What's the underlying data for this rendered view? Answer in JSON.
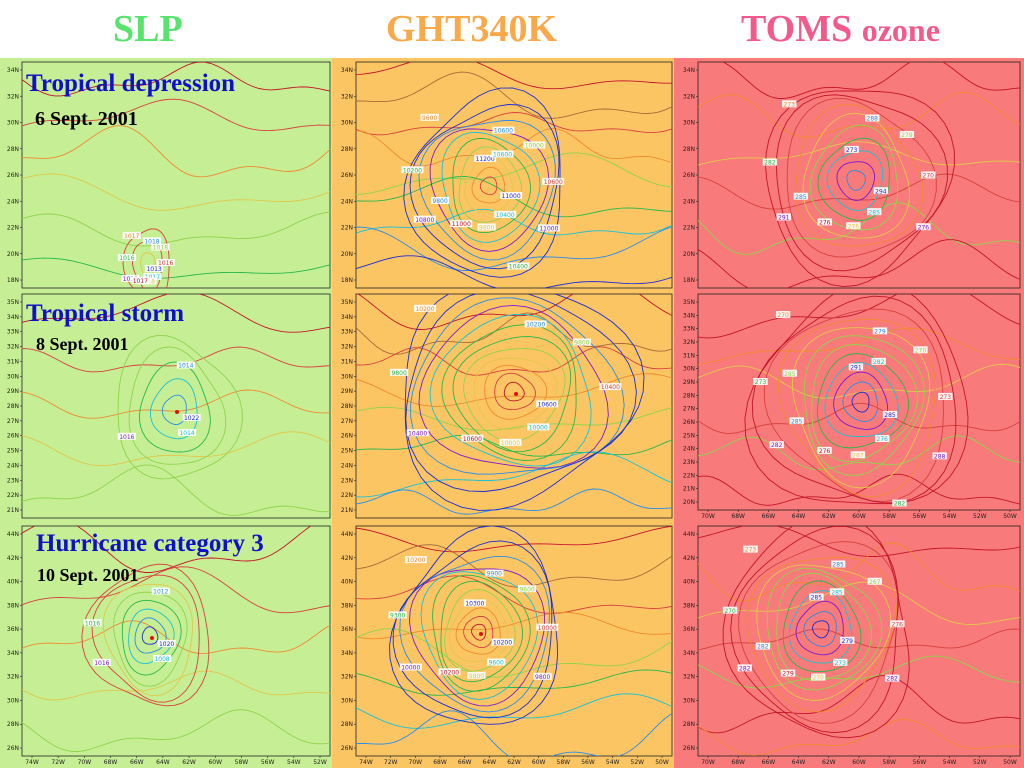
{
  "columns": {
    "slp": {
      "title": "SLP",
      "color": "#58e46c",
      "background": "#c6ee94"
    },
    "ght": {
      "title": "GHT340K",
      "color": "#f9a84a",
      "background": "#fcc564"
    },
    "toms": {
      "title_main": "TOMS",
      "title_sub": "ozone",
      "color": "#f25a8a",
      "background": "#f97a7a"
    }
  },
  "rows": [
    {
      "stage": "Tropical depression",
      "date": "6 Sept. 2001"
    },
    {
      "stage": "Tropical storm",
      "date": "8 Sept. 2001"
    },
    {
      "stage": "Hurricane category 3",
      "date": "10 Sept. 2001"
    }
  ],
  "axes": {
    "lon_ticks_slp": [
      "74W",
      "72W",
      "70W",
      "68W",
      "66W",
      "64W",
      "62W",
      "60W",
      "58W",
      "56W",
      "54W",
      "52W"
    ],
    "lon_ticks_ght": [
      "74W",
      "72W",
      "70W",
      "68W",
      "66W",
      "64W",
      "62W",
      "60W",
      "58W",
      "56W",
      "54W",
      "52W",
      "50W"
    ],
    "lon_ticks_toms": [
      "70W",
      "68W",
      "66W",
      "64W",
      "62W",
      "60W",
      "58W",
      "56W",
      "54W",
      "52W",
      "50W"
    ],
    "lat_ticks_row1": [
      "34N",
      "32N",
      "30N",
      "28N",
      "26N",
      "24N",
      "22N",
      "20N",
      "18N"
    ],
    "lat_ticks_row2": [
      "35N",
      "34N",
      "33N",
      "32N",
      "31N",
      "30N",
      "29N",
      "28N",
      "27N",
      "26N",
      "25N",
      "24N",
      "23N",
      "22N",
      "21N"
    ],
    "lat_ticks_row2_toms": [
      "35N",
      "34N",
      "33N",
      "32N",
      "31N",
      "30N",
      "29N",
      "28N",
      "27N",
      "26N",
      "25N",
      "24N",
      "23N",
      "22N",
      "21N",
      "20N"
    ],
    "lat_ticks_row3": [
      "44N",
      "42N",
      "40N",
      "38N",
      "36N",
      "34N",
      "32N",
      "30N",
      "28N",
      "26N"
    ]
  },
  "contour_labels": {
    "slp_r1": [
      "1013",
      "1018",
      "1018",
      "1017",
      "1016",
      "1018",
      "1018",
      "1017",
      "1016",
      "1017"
    ],
    "slp_r2": [
      "1022",
      "1016",
      "1014",
      "1014"
    ],
    "slp_r3": [
      "1020",
      "1016",
      "1012",
      "1008",
      "1016"
    ],
    "ght_r1": [
      "11000",
      "10800",
      "10600",
      "10400",
      "10200",
      "10000",
      "9800",
      "9600",
      "10600",
      "11000",
      "11200",
      "11000",
      "9800",
      "10600",
      "10400"
    ],
    "ght_r2": [
      "10600",
      "10400",
      "10200",
      "10000",
      "9800",
      "9800",
      "10000",
      "10200",
      "10400",
      "10600"
    ],
    "ght_r3": [
      "10200",
      "10000",
      "9900",
      "9600",
      "9300",
      "9600",
      "9800",
      "10200",
      "10000",
      "10200",
      "10300",
      "9800"
    ],
    "toms_r1": [
      "294",
      "291",
      "288",
      "285",
      "282",
      "279",
      "276",
      "273",
      "270",
      "276",
      "273",
      "276",
      "285"
    ],
    "toms_r2": [
      "285",
      "282",
      "279",
      "276",
      "273",
      "270",
      "267",
      "270",
      "273",
      "276",
      "291",
      "288",
      "285",
      "282",
      "282",
      "285"
    ],
    "toms_r3": [
      "279",
      "282",
      "285",
      "273",
      "270",
      "267",
      "270",
      "273",
      "276",
      "279",
      "285",
      "282",
      "282",
      "285"
    ]
  },
  "styles": {
    "contour_colors": [
      "#1a2cd6",
      "#7a1bd0",
      "#2a8de8",
      "#19c2d6",
      "#27b84a",
      "#8fd44c",
      "#e0c84a",
      "#f08a30",
      "#d84040",
      "#c4142a"
    ],
    "storm_marker": "#e01010"
  }
}
